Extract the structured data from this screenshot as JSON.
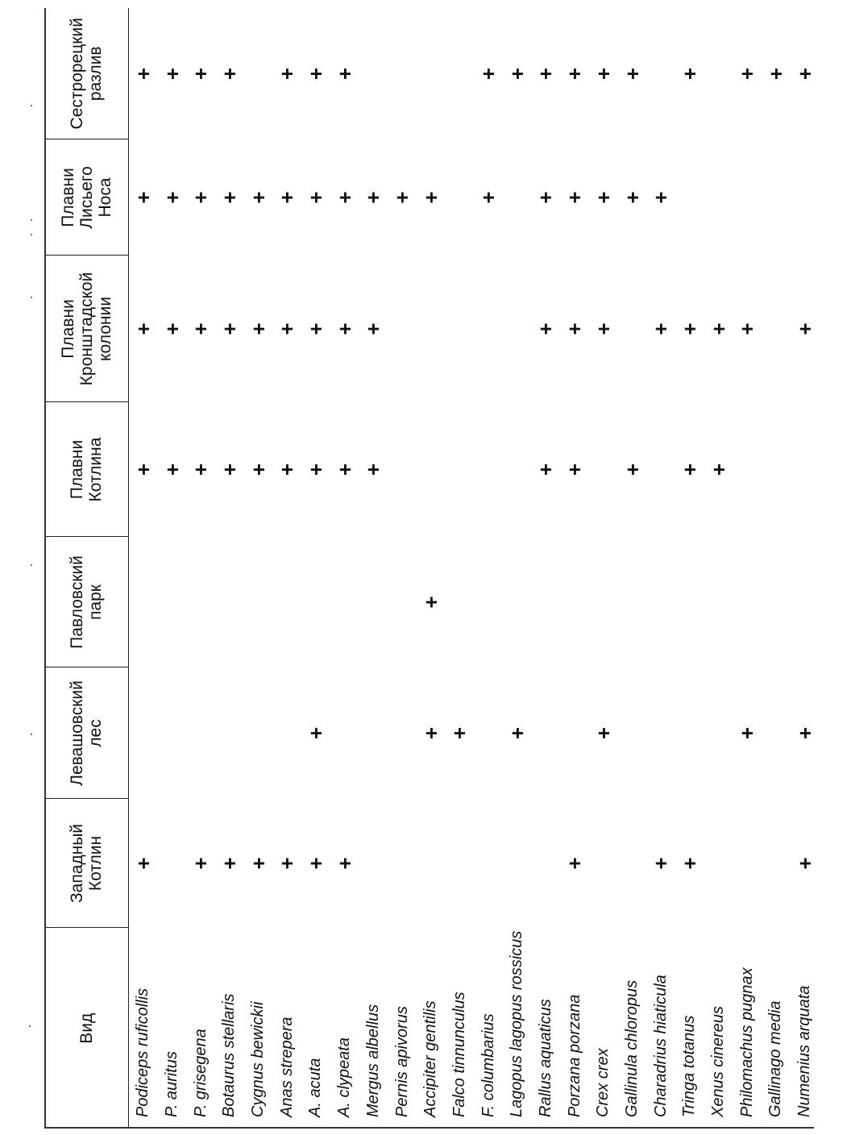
{
  "table": {
    "headers": [
      "Вид",
      "Западный\nКотлин",
      "Левашовский\nлес",
      "Павловский\nпарк",
      "Плавни\nКотлина",
      "Плавни\nКронштадской\nколонии",
      "Плавни\nЛисьего\nНоса",
      "Сестрорецкий\nразлив"
    ],
    "rows": [
      {
        "species": "Podiceps ruficollis",
        "marks": [
          "+",
          "",
          "",
          "+",
          "+",
          "+",
          "+"
        ]
      },
      {
        "species": "P. auritus",
        "marks": [
          "",
          "",
          "",
          "+",
          "+",
          "+",
          "+"
        ]
      },
      {
        "species": "P. grisegena",
        "marks": [
          "+",
          "",
          "",
          "+",
          "+",
          "+",
          "+"
        ]
      },
      {
        "species": "Botaurus stellaris",
        "marks": [
          "+",
          "",
          "",
          "+",
          "+",
          "+",
          "+"
        ]
      },
      {
        "species": "Cygnus bewickii",
        "marks": [
          "+",
          "",
          "",
          "+",
          "+",
          "+",
          ""
        ]
      },
      {
        "species": "Anas strepera",
        "marks": [
          "+",
          "",
          "",
          "+",
          "+",
          "+",
          "+"
        ]
      },
      {
        "species": "A. acuta",
        "marks": [
          "+",
          "+",
          "",
          "+",
          "+",
          "+",
          "+"
        ]
      },
      {
        "species": "A. clypeata",
        "marks": [
          "+",
          "",
          "",
          "+",
          "+",
          "+",
          "+"
        ]
      },
      {
        "species": "Mergus albellus",
        "marks": [
          "",
          "",
          "",
          "+",
          "+",
          "+",
          ""
        ]
      },
      {
        "species": "Pernis apivorus",
        "marks": [
          "",
          "",
          "",
          "",
          "",
          "+",
          ""
        ]
      },
      {
        "species": "Accipiter gentilis",
        "marks": [
          "",
          "+",
          "+",
          "",
          "",
          "+",
          ""
        ]
      },
      {
        "species": "Falco tinnunculus",
        "marks": [
          "",
          "+",
          "",
          "",
          "",
          "",
          ""
        ]
      },
      {
        "species": "F. columbarius",
        "marks": [
          "",
          "",
          "",
          "",
          "",
          "+",
          "+"
        ]
      },
      {
        "species": "Lagopus lagopus rossicus",
        "marks": [
          "",
          "+",
          "",
          "",
          "",
          "",
          "+"
        ]
      },
      {
        "species": "Rallus aquaticus",
        "marks": [
          "",
          "",
          "",
          "+",
          "+",
          "+",
          "+"
        ]
      },
      {
        "species": "Porzana porzana",
        "marks": [
          "+",
          "",
          "",
          "+",
          "+",
          "+",
          "+"
        ]
      },
      {
        "species": "Crex crex",
        "marks": [
          "",
          "+",
          "",
          "",
          "+",
          "+",
          "+"
        ]
      },
      {
        "species": "Gallinula chloropus",
        "marks": [
          "",
          "",
          "",
          "+",
          "",
          "+",
          "+"
        ]
      },
      {
        "species": "Charadrius hiaticula",
        "marks": [
          "+",
          "",
          "",
          "",
          "+",
          "+",
          ""
        ]
      },
      {
        "species": "Tringa totanus",
        "marks": [
          "+",
          "",
          "",
          "+",
          "+",
          "",
          "+"
        ]
      },
      {
        "species": "Xenus cinereus",
        "marks": [
          "",
          "",
          "",
          "+",
          "+",
          "",
          ""
        ]
      },
      {
        "species": "Philomachus pugnax",
        "marks": [
          "",
          "+",
          "",
          "",
          "+",
          "",
          "+"
        ]
      },
      {
        "species": "Gallinago media",
        "marks": [
          "",
          "",
          "",
          "",
          "",
          "",
          "+"
        ]
      },
      {
        "species": "Numenius arquata",
        "marks": [
          "+",
          "+",
          "",
          "",
          "+",
          "",
          "+"
        ]
      }
    ]
  }
}
